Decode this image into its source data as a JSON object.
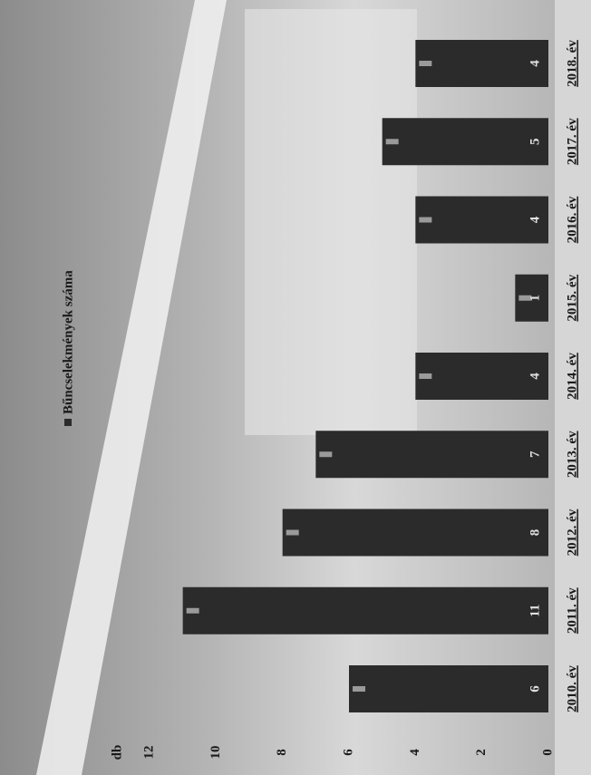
{
  "chart_data": {
    "type": "bar",
    "y_label": "db",
    "categories": [
      "2010. év",
      "2011. év",
      "2012. év",
      "2013. év",
      "2014. év",
      "2015. év",
      "2016. év",
      "2017. év",
      "2018. év"
    ],
    "series": [
      {
        "name": "Bűncselekmények száma",
        "color": "#2b2b2b",
        "values": [
          6,
          11,
          8,
          7,
          4,
          1,
          4,
          5,
          4
        ]
      }
    ],
    "ylim": [
      0,
      12
    ],
    "yticks": [
      0,
      2,
      4,
      6,
      8,
      10,
      12
    ],
    "legend": "top",
    "grid": false
  }
}
